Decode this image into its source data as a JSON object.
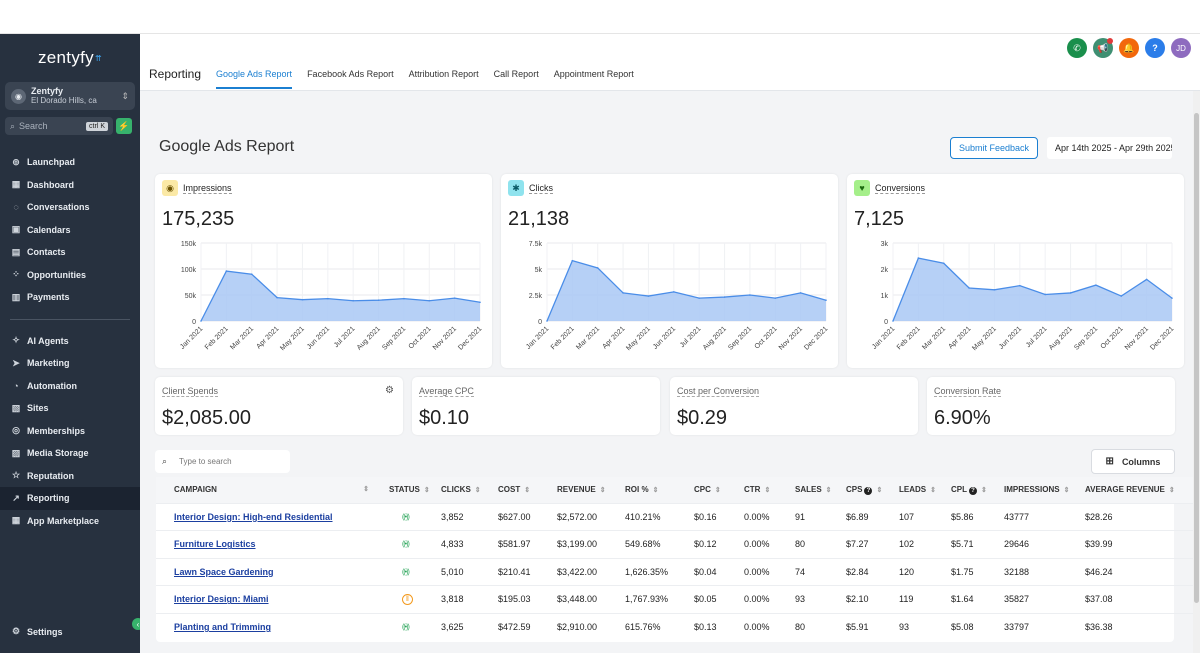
{
  "sidebar": {
    "logo": "zentyfy",
    "account": {
      "name": "Zentyfy",
      "location": "El Dorado Hills, ca"
    },
    "search": {
      "placeholder": "Search",
      "shortcut": "ctrl K"
    },
    "items": [
      {
        "label": "Launchpad",
        "icon": "launchpad-icon"
      },
      {
        "label": "Dashboard",
        "icon": "dashboard-icon"
      },
      {
        "label": "Conversations",
        "icon": "chat-icon"
      },
      {
        "label": "Calendars",
        "icon": "calendar-icon"
      },
      {
        "label": "Contacts",
        "icon": "contacts-icon"
      },
      {
        "label": "Opportunities",
        "icon": "opportunities-icon"
      },
      {
        "label": "Payments",
        "icon": "payments-icon"
      }
    ],
    "items2": [
      {
        "label": "AI Agents",
        "icon": "ai-agents-icon"
      },
      {
        "label": "Marketing",
        "icon": "send-icon"
      },
      {
        "label": "Automation",
        "icon": "automation-icon"
      },
      {
        "label": "Sites",
        "icon": "sites-icon"
      },
      {
        "label": "Memberships",
        "icon": "memberships-icon"
      },
      {
        "label": "Media Storage",
        "icon": "media-icon"
      },
      {
        "label": "Reputation",
        "icon": "star-icon"
      },
      {
        "label": "Reporting",
        "icon": "reporting-icon"
      },
      {
        "label": "App Marketplace",
        "icon": "marketplace-icon"
      }
    ],
    "settings": "Settings"
  },
  "header": {
    "crumb": "Reporting",
    "tabs": [
      "Google Ads Report",
      "Facebook Ads Report",
      "Attribution Report",
      "Call Report",
      "Appointment Report"
    ],
    "avatar_initials": "JD",
    "icon_colors": {
      "phone": "#1a8f4c",
      "megaphone": "#3f8f72",
      "bell": "#f2680c",
      "help": "#2b7de9",
      "avatar": "#8e6bbf"
    }
  },
  "page": {
    "title": "Google Ads Report",
    "feedback_button": "Submit Feedback",
    "date_range": "Apr 14th 2025 - Apr 29th 2025"
  },
  "metrics": {
    "impressions": {
      "label": "Impressions",
      "value": "175,235"
    },
    "clicks": {
      "label": "Clicks",
      "value": "21,138"
    },
    "conversions": {
      "label": "Conversions",
      "value": "7,125"
    }
  },
  "chart_data": [
    {
      "type": "area",
      "categories": [
        "Jan 2021",
        "Feb 2021",
        "Mar 2021",
        "Apr 2021",
        "May 2021",
        "Jun 2021",
        "Jul 2021",
        "Aug 2021",
        "Sep 2021",
        "Oct 2021",
        "Nov 2021",
        "Dec 2021"
      ],
      "yticks": [
        "0",
        "50k",
        "100k",
        "150k"
      ],
      "ylim": [
        0,
        150000
      ],
      "values": [
        0,
        96000,
        90000,
        45000,
        41000,
        43000,
        39000,
        40000,
        43000,
        39000,
        44000,
        36000
      ],
      "color": "#4a8de8"
    },
    {
      "type": "area",
      "categories": [
        "Jan 2021",
        "Feb 2021",
        "Mar 2021",
        "Apr 2021",
        "May 2021",
        "Jun 2021",
        "Jul 2021",
        "Aug 2021",
        "Sep 2021",
        "Oct 2021",
        "Nov 2021",
        "Dec 2021"
      ],
      "yticks": [
        "0",
        "2.5k",
        "5k",
        "7.5k"
      ],
      "ylim": [
        0,
        7500
      ],
      "values": [
        0,
        5800,
        5100,
        2700,
        2400,
        2800,
        2200,
        2300,
        2500,
        2200,
        2700,
        2000
      ],
      "color": "#4a8de8"
    },
    {
      "type": "area",
      "categories": [
        "Jan 2021",
        "Feb 2021",
        "Mar 2021",
        "Apr 2021",
        "May 2021",
        "Jun 2021",
        "Jul 2021",
        "Aug 2021",
        "Sep 2021",
        "Oct 2021",
        "Nov 2021",
        "Dec 2021"
      ],
      "yticks": [
        "0",
        "1k",
        "2k",
        "3k"
      ],
      "ylim": [
        0,
        3000
      ],
      "values": [
        0,
        2420,
        2220,
        1270,
        1200,
        1360,
        1020,
        1080,
        1380,
        960,
        1600,
        880
      ],
      "color": "#4a8de8"
    }
  ],
  "stats": [
    {
      "label": "Client Spends",
      "value": "$2,085.00"
    },
    {
      "label": "Average CPC",
      "value": "$0.10"
    },
    {
      "label": "Cost per Conversion",
      "value": "$0.29"
    },
    {
      "label": "Conversion Rate",
      "value": "6.90%"
    }
  ],
  "table": {
    "search_placeholder": "Type to search",
    "columns_button": "Columns",
    "headers": [
      "CAMPAIGN",
      "STATUS",
      "CLICKS",
      "COST",
      "REVENUE",
      "ROI %",
      "CPC",
      "CTR",
      "SALES",
      "CPS",
      "LEADS",
      "CPL",
      "IMPRESSIONS",
      "AVERAGE REVENUE"
    ],
    "rows": [
      {
        "campaign": "Interior Design: High-end Residential",
        "status": "live",
        "clicks": "3,852",
        "cost": "$627.00",
        "revenue": "$2,572.00",
        "roi": "410.21%",
        "cpc": "$0.16",
        "ctr": "0.00%",
        "sales": "91",
        "cps": "$6.89",
        "leads": "107",
        "cpl": "$5.86",
        "impressions": "43777",
        "avg_revenue": "$28.26"
      },
      {
        "campaign": "Furniture Logistics",
        "status": "live",
        "clicks": "4,833",
        "cost": "$581.97",
        "revenue": "$3,199.00",
        "roi": "549.68%",
        "cpc": "$0.12",
        "ctr": "0.00%",
        "sales": "80",
        "cps": "$7.27",
        "leads": "102",
        "cpl": "$5.71",
        "impressions": "29646",
        "avg_revenue": "$39.99"
      },
      {
        "campaign": "Lawn Space Gardening",
        "status": "live",
        "clicks": "5,010",
        "cost": "$210.41",
        "revenue": "$3,422.00",
        "roi": "1,626.35%",
        "cpc": "$0.04",
        "ctr": "0.00%",
        "sales": "74",
        "cps": "$2.84",
        "leads": "120",
        "cpl": "$1.75",
        "impressions": "32188",
        "avg_revenue": "$46.24"
      },
      {
        "campaign": "Interior Design: Miami",
        "status": "paused",
        "clicks": "3,818",
        "cost": "$195.03",
        "revenue": "$3,448.00",
        "roi": "1,767.93%",
        "cpc": "$0.05",
        "ctr": "0.00%",
        "sales": "93",
        "cps": "$2.10",
        "leads": "119",
        "cpl": "$1.64",
        "impressions": "35827",
        "avg_revenue": "$37.08"
      },
      {
        "campaign": "Planting and Trimming",
        "status": "live",
        "clicks": "3,625",
        "cost": "$472.59",
        "revenue": "$2,910.00",
        "roi": "615.76%",
        "cpc": "$0.13",
        "ctr": "0.00%",
        "sales": "80",
        "cps": "$5.91",
        "leads": "93",
        "cpl": "$5.08",
        "impressions": "33797",
        "avg_revenue": "$36.38"
      }
    ]
  }
}
